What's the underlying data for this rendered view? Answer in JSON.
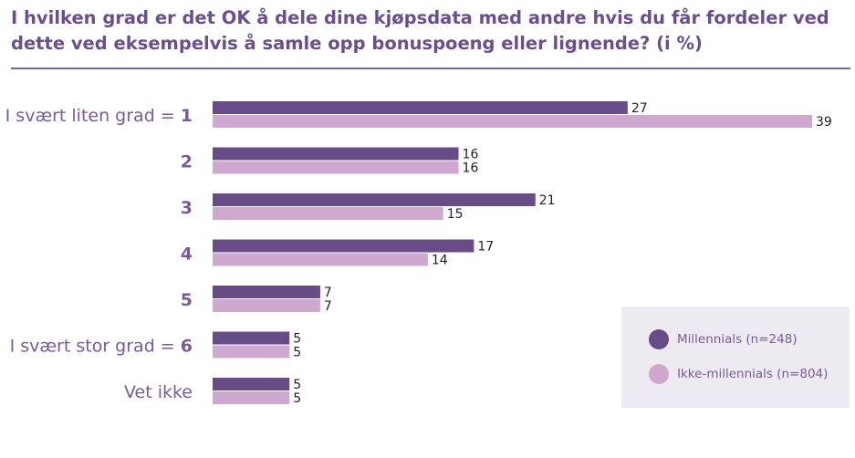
{
  "chart_data": {
    "type": "bar",
    "orientation": "horizontal",
    "title": "I hvilken grad er det OK å dele dine kjøpsdata med andre hvis du får fordeler ved dette ved eksempelvis å samle opp bonuspoeng eller lignende? (i %)",
    "categories": [
      {
        "label": "I svært liten grad = ",
        "strong": "1"
      },
      {
        "label": "",
        "strong": "2"
      },
      {
        "label": "",
        "strong": "3"
      },
      {
        "label": "",
        "strong": "4"
      },
      {
        "label": "",
        "strong": "5"
      },
      {
        "label": "I svært stor grad = ",
        "strong": "6"
      },
      {
        "label": "Vet ikke",
        "strong": ""
      }
    ],
    "series": [
      {
        "name": "Millennials (n=248)",
        "color": "#684c88",
        "values": [
          27,
          16,
          21,
          17,
          7,
          5,
          5
        ]
      },
      {
        "name": "Ikke-millennials (n=804)",
        "color": "#cfa8cf",
        "values": [
          39,
          16,
          15,
          14,
          7,
          5,
          5
        ]
      }
    ],
    "xlim": [
      0,
      39
    ],
    "legend_position": "bottom-right",
    "data_labels": true,
    "grid": false
  }
}
